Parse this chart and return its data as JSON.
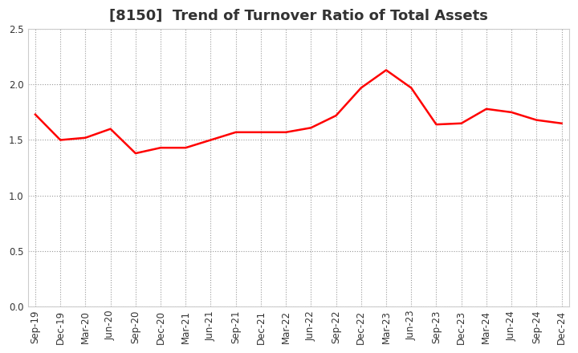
{
  "title": "[8150]  Trend of Turnover Ratio of Total Assets",
  "labels": [
    "Sep-19",
    "Dec-19",
    "Mar-20",
    "Jun-20",
    "Sep-20",
    "Dec-20",
    "Mar-21",
    "Jun-21",
    "Sep-21",
    "Dec-21",
    "Mar-22",
    "Jun-22",
    "Sep-22",
    "Dec-22",
    "Mar-23",
    "Jun-23",
    "Sep-23",
    "Dec-23",
    "Mar-24",
    "Jun-24",
    "Sep-24",
    "Dec-24"
  ],
  "values": [
    1.73,
    1.5,
    1.52,
    1.6,
    1.38,
    1.43,
    1.43,
    1.5,
    1.57,
    1.57,
    1.57,
    1.61,
    1.72,
    1.97,
    2.13,
    1.97,
    1.64,
    1.65,
    1.78,
    1.75,
    1.68,
    1.65
  ],
  "line_color": "#ff0000",
  "ylim": [
    0.0,
    2.5
  ],
  "yticks": [
    0.0,
    0.5,
    1.0,
    1.5,
    2.0,
    2.5
  ],
  "background_color": "#ffffff",
  "grid_color": "#999999",
  "title_color": "#333333",
  "title_fontsize": 13,
  "tick_fontsize": 8.5,
  "line_width": 1.8,
  "figsize": [
    7.2,
    4.4
  ],
  "dpi": 100
}
